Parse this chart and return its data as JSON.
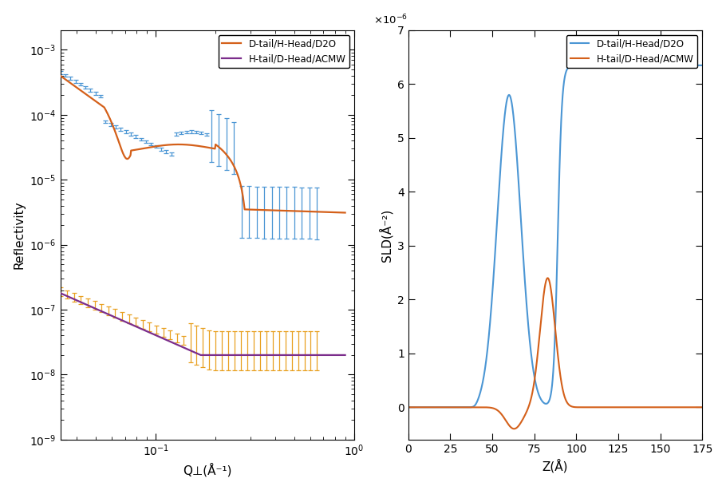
{
  "left_plot": {
    "xlabel": "Q⊥(Å⁻¹)",
    "ylabel": "Reflectivity",
    "xlim": [
      0.033,
      1.0
    ],
    "ylim": [
      1e-09,
      0.002
    ],
    "legend": [
      "D-tail/H-Head/D2O",
      "H-tail/D-Head/ACMW"
    ],
    "curve1_color": "#d4601a",
    "curve2_color": "#7B2D8B",
    "data1_color": "#4B96D4",
    "data2_color": "#E8A020"
  },
  "right_plot": {
    "xlabel": "Z(Å)",
    "ylabel": "SLD(Å⁻²)",
    "xlim": [
      0,
      175
    ],
    "ylim": [
      -6e-07,
      7e-06
    ],
    "legend": [
      "D-tail/H-Head/D2O",
      "H-tail/D-Head/ACMW"
    ],
    "curve1_color": "#4B96D4",
    "curve2_color": "#d4601a"
  }
}
